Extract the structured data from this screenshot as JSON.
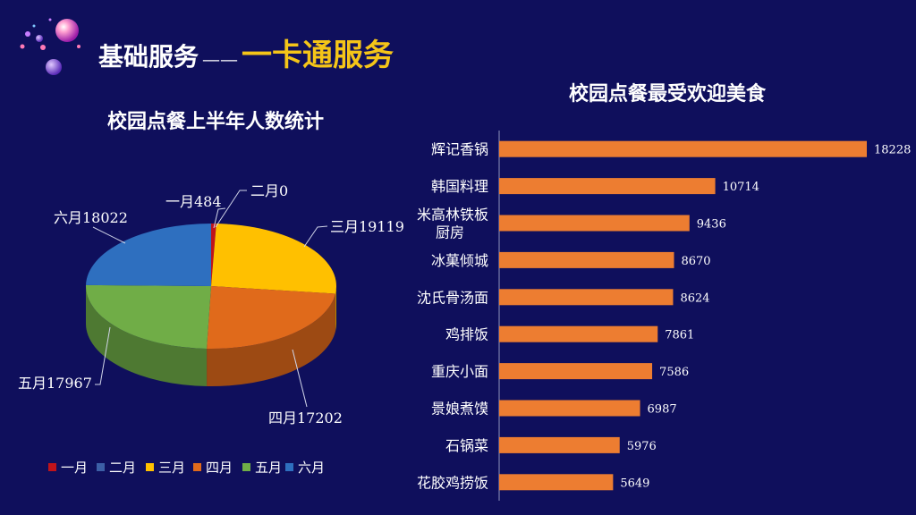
{
  "header": {
    "title": "基础服务",
    "dash": "——",
    "subtitle": "一卡通服务"
  },
  "chart_data": [
    {
      "type": "pie",
      "title": "校园点餐上半年人数统计",
      "categories": [
        "一月",
        "二月",
        "三月",
        "四月",
        "五月",
        "六月"
      ],
      "values": [
        484,
        0,
        19119,
        17202,
        17967,
        18022
      ],
      "data_labels": [
        "一月484",
        "二月0",
        "三月19119",
        "四月17202",
        "五月17967",
        "六月18022"
      ],
      "colors": [
        "#c0131a",
        "#3c5fa6",
        "#ffc000",
        "#e06a1b",
        "#70ad47",
        "#2e6fbf"
      ],
      "legend": "bottom",
      "style": "3d"
    },
    {
      "type": "bar",
      "orientation": "horizontal",
      "title": "校园点餐最受欢迎美食",
      "categories": [
        "辉记香锅",
        "韩国料理",
        "米高林铁板厨房",
        "冰菓倾城",
        "沈氏骨汤面",
        "鸡排饭",
        "重庆小面",
        "景娘煮馍",
        "石锅菜",
        "花胶鸡捞饭"
      ],
      "category_lines": [
        [
          "辉记香锅"
        ],
        [
          "韩国料理"
        ],
        [
          "米高林铁板",
          "厨房"
        ],
        [
          "冰菓倾城"
        ],
        [
          "沈氏骨汤面"
        ],
        [
          "鸡排饭"
        ],
        [
          "重庆小面"
        ],
        [
          "景娘煮馍"
        ],
        [
          "石锅菜"
        ],
        [
          "花胶鸡捞饭"
        ]
      ],
      "values": [
        18228,
        10714,
        9436,
        8670,
        8624,
        7861,
        7586,
        6987,
        5976,
        5649
      ],
      "value_labels": [
        "18228",
        "10714",
        "9436",
        "8670",
        "8624",
        "7861",
        "7586",
        "6987",
        "5976",
        "5649"
      ],
      "bar_color": "#ed7d31",
      "xlim": [
        0,
        18228
      ],
      "grid": false
    }
  ]
}
